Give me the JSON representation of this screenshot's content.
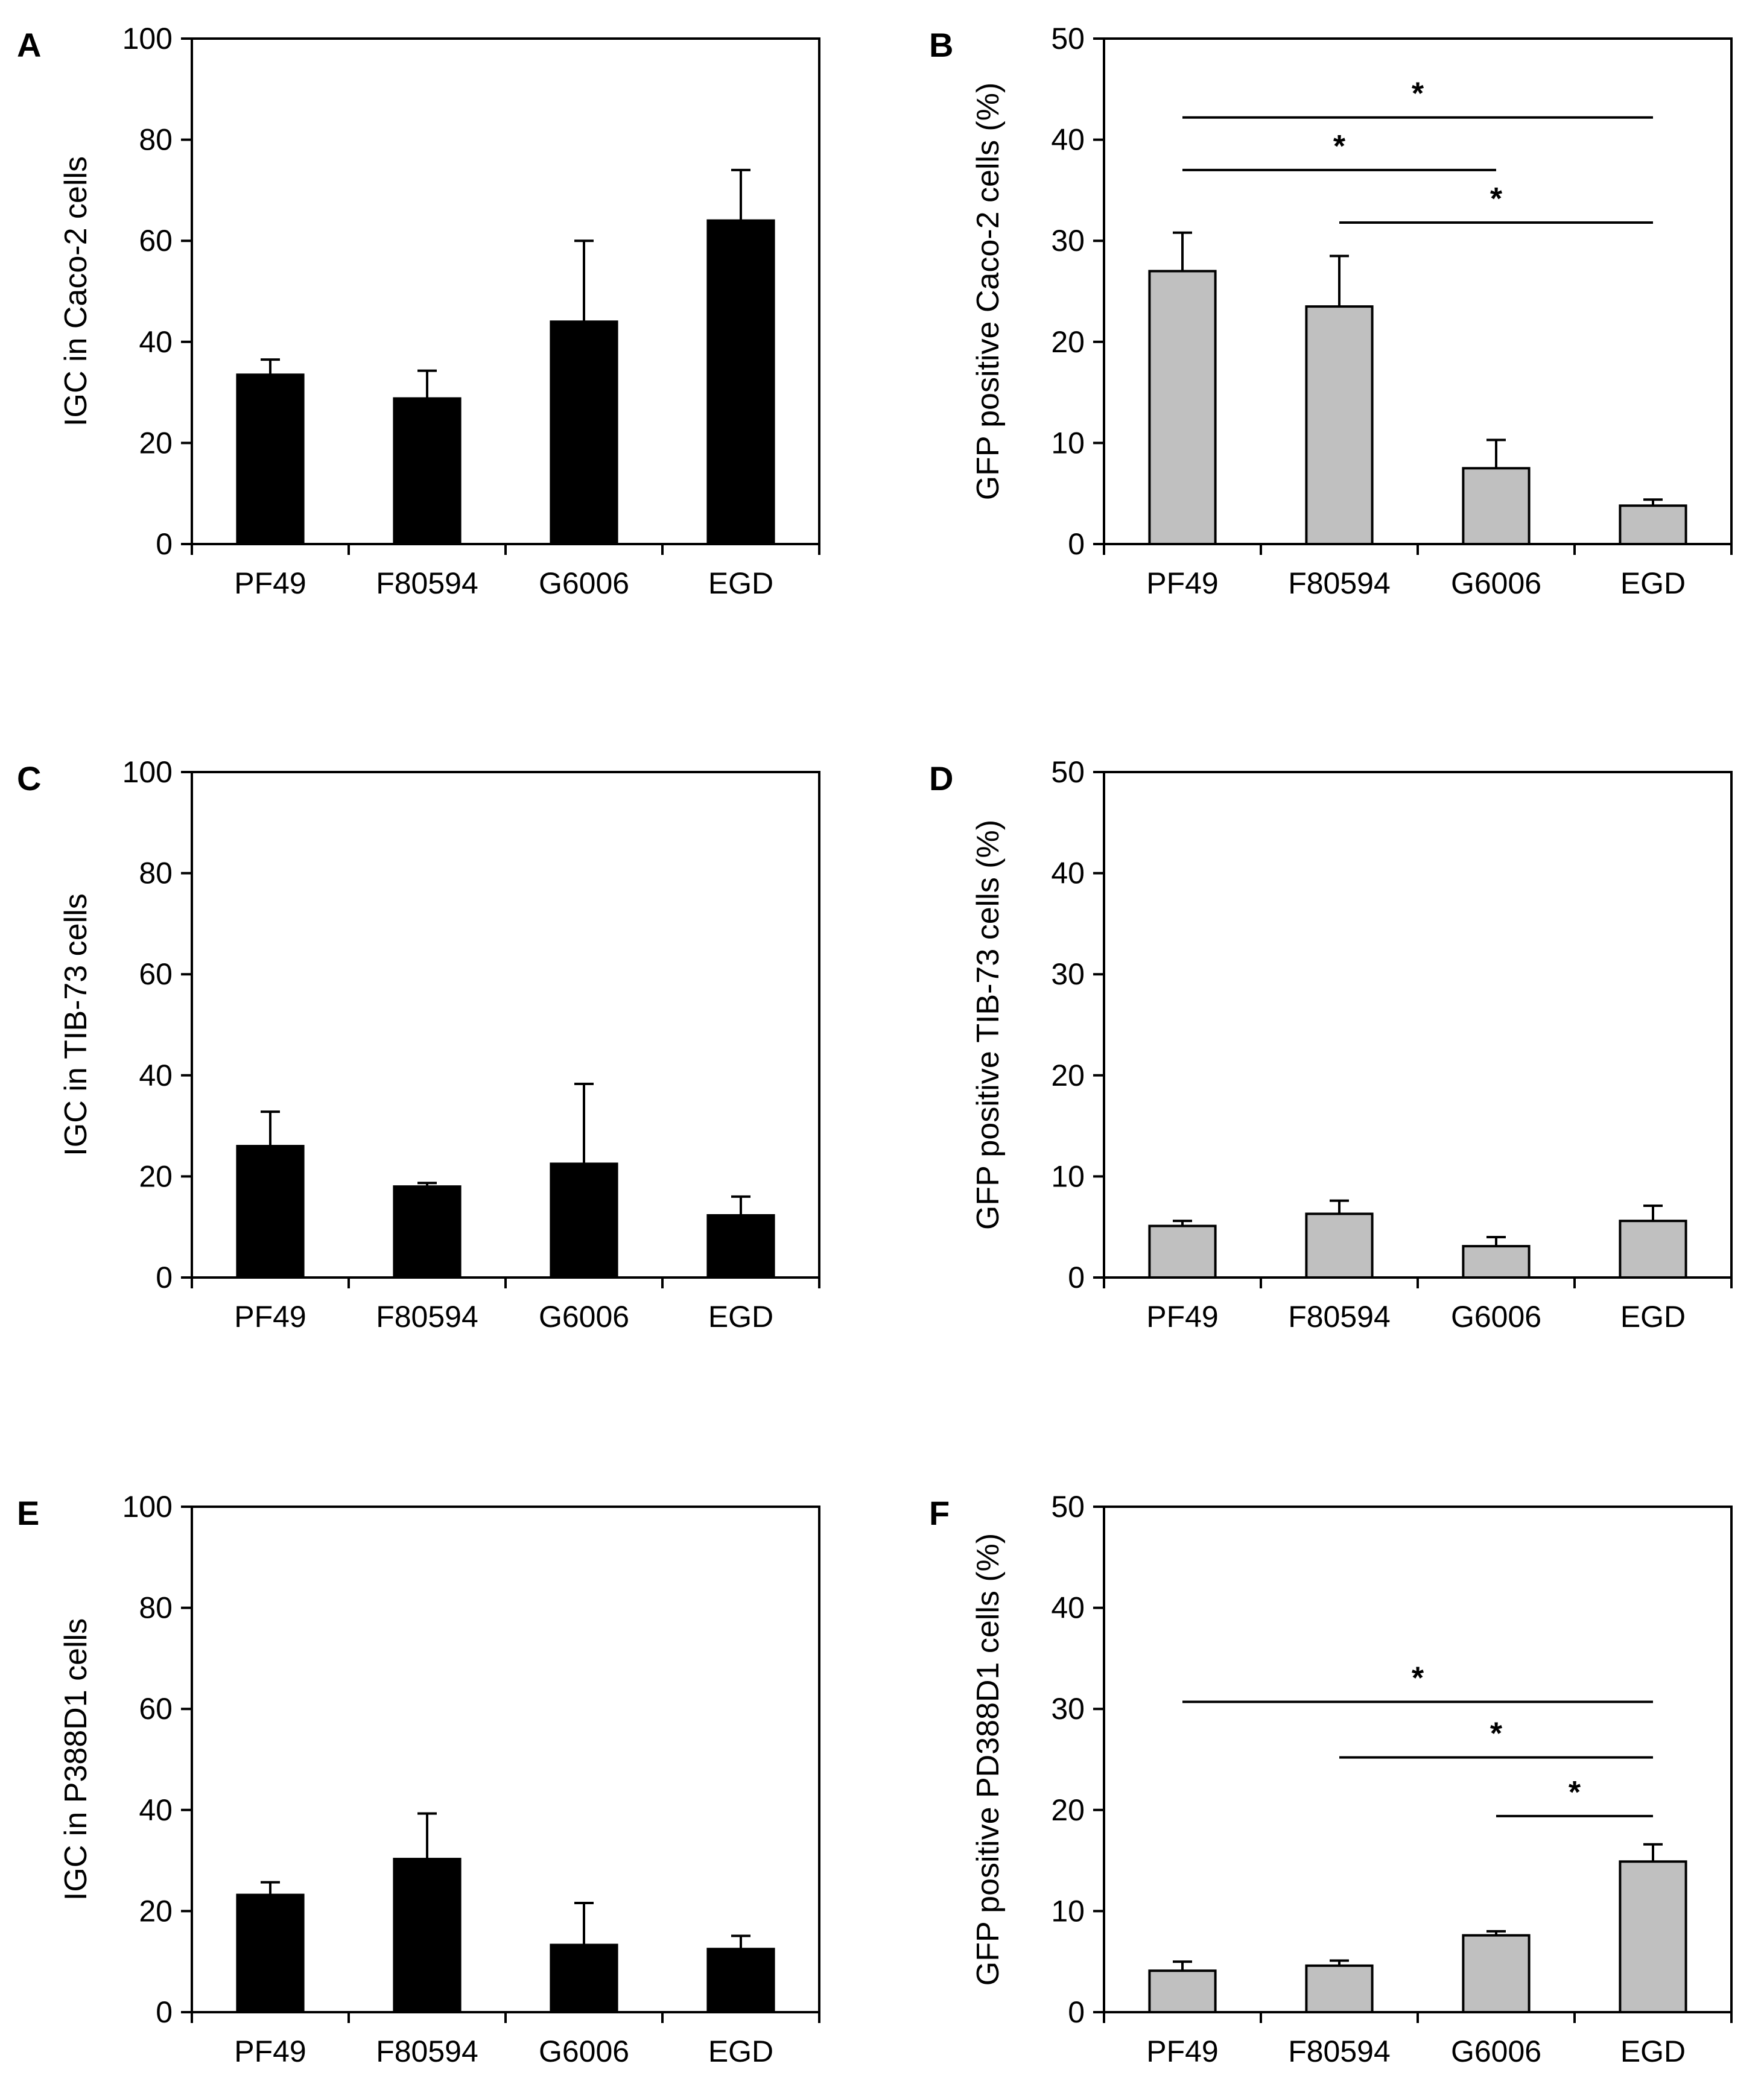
{
  "chart_data": [
    {
      "panel": "A",
      "type": "bar",
      "categories": [
        "PF49",
        "F80594",
        "G6006",
        "EGD"
      ],
      "values": [
        33.5,
        28.8,
        44,
        64
      ],
      "errors": [
        3,
        5.5,
        16,
        10
      ],
      "ylabel": "IGC in Caco-2 cells",
      "ylim": [
        0,
        100
      ],
      "yticks": [
        0,
        20,
        40,
        60,
        80,
        100
      ],
      "bar_color": "#000000",
      "significance": []
    },
    {
      "panel": "B",
      "type": "bar",
      "categories": [
        "PF49",
        "F80594",
        "G6006",
        "EGD"
      ],
      "values": [
        27,
        23.5,
        7.5,
        3.8
      ],
      "errors": [
        3.8,
        5,
        2.8,
        0.6
      ],
      "ylabel": "GFP positive Caco-2 cells (%)",
      "ylim": [
        0,
        50
      ],
      "yticks": [
        0,
        10,
        20,
        30,
        40,
        50
      ],
      "bar_color": "#c0c0c0",
      "significance": [
        {
          "from": "PF49",
          "to": "EGD",
          "y": 42.2,
          "label": "*"
        },
        {
          "from": "PF49",
          "to": "G6006",
          "y": 37,
          "label": "*"
        },
        {
          "from": "F80594",
          "to": "EGD",
          "y": 31.8,
          "label": "*"
        }
      ]
    },
    {
      "panel": "C",
      "type": "bar",
      "categories": [
        "PF49",
        "F80594",
        "G6006",
        "EGD"
      ],
      "values": [
        26,
        18,
        22.5,
        12.3
      ],
      "errors": [
        6.8,
        0.7,
        15.8,
        3.7
      ],
      "ylabel": "IGC in TIB-73 cells",
      "ylim": [
        0,
        100
      ],
      "yticks": [
        0,
        20,
        40,
        60,
        80,
        100
      ],
      "bar_color": "#000000",
      "significance": []
    },
    {
      "panel": "D",
      "type": "bar",
      "categories": [
        "PF49",
        "F80594",
        "G6006",
        "EGD"
      ],
      "values": [
        5.1,
        6.3,
        3.1,
        5.6
      ],
      "errors": [
        0.5,
        1.3,
        0.9,
        1.5
      ],
      "ylabel": "GFP positive TIB-73 cells (%)",
      "ylim": [
        0,
        50
      ],
      "yticks": [
        0,
        10,
        20,
        30,
        40,
        50
      ],
      "bar_color": "#c0c0c0",
      "significance": []
    },
    {
      "panel": "E",
      "type": "bar",
      "categories": [
        "PF49",
        "F80594",
        "G6006",
        "EGD"
      ],
      "values": [
        23.2,
        30.3,
        13.3,
        12.5
      ],
      "errors": [
        2.5,
        9,
        8.3,
        2.6
      ],
      "ylabel": "IGC in P388D1 cells",
      "ylim": [
        0,
        100
      ],
      "yticks": [
        0,
        20,
        40,
        60,
        80,
        100
      ],
      "bar_color": "#000000",
      "significance": []
    },
    {
      "panel": "F",
      "type": "bar",
      "categories": [
        "PF49",
        "F80594",
        "G6006",
        "EGD"
      ],
      "values": [
        4.1,
        4.6,
        7.6,
        14.9
      ],
      "errors": [
        0.9,
        0.5,
        0.4,
        1.7
      ],
      "ylabel": "GFP positive PD388D1 cells (%)",
      "ylim": [
        0,
        50
      ],
      "yticks": [
        0,
        10,
        20,
        30,
        40,
        50
      ],
      "bar_color": "#c0c0c0",
      "significance": [
        {
          "from": "PF49",
          "to": "EGD",
          "y": 30.7,
          "label": "*"
        },
        {
          "from": "F80594",
          "to": "EGD",
          "y": 25.2,
          "label": "*"
        },
        {
          "from": "G6006",
          "to": "EGD",
          "y": 19.4,
          "label": "*"
        }
      ]
    }
  ]
}
